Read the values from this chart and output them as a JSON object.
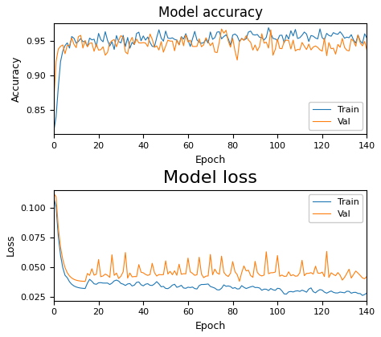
{
  "title_accuracy": "Model accuracy",
  "title_loss": "Model loss",
  "xlabel": "Epoch",
  "ylabel_accuracy": "Accuracy",
  "ylabel_loss": "Loss",
  "train_color": "#1f77b4",
  "val_color": "#ff7f0e",
  "n_epochs": 141,
  "acc_ylim": [
    0.815,
    0.975
  ],
  "loss_ylim": [
    0.022,
    0.115
  ],
  "acc_yticks": [
    0.85,
    0.9,
    0.95
  ],
  "loss_yticks": [
    0.025,
    0.05,
    0.075,
    0.1
  ],
  "xticks": [
    0,
    20,
    40,
    60,
    80,
    100,
    120,
    140
  ],
  "legend_labels": [
    "Train",
    "Val"
  ],
  "background_color": "#ffffff",
  "figure_facecolor": "#ffffff",
  "title_loss_fontsize": 16
}
